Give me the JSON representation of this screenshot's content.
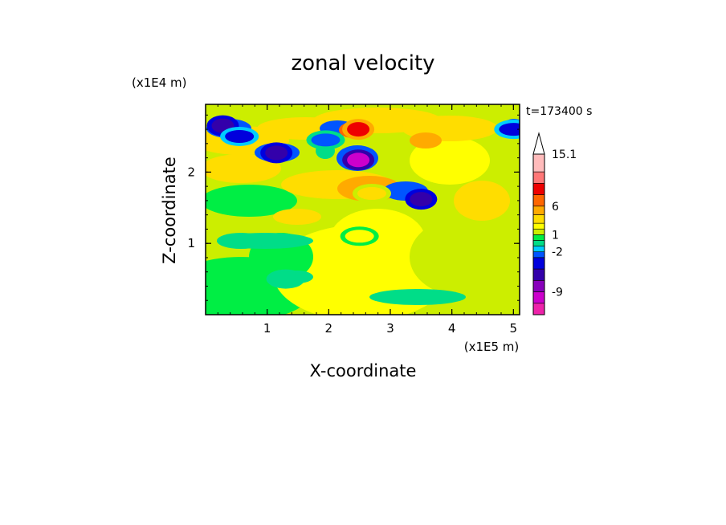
{
  "chart_data": {
    "type": "heatmap",
    "title": "zonal velocity",
    "xlabel": "X-coordinate",
    "ylabel": "Z-coordinate",
    "x_unit": "(x1E5 m)",
    "y_unit": "(x1E4 m)",
    "time_label": "t=173400 s",
    "xlim": [
      0,
      5.1
    ],
    "ylim": [
      0,
      2.95
    ],
    "x_ticks": [
      "1",
      "2",
      "3",
      "4",
      "5"
    ],
    "y_ticks": [
      "1",
      "2"
    ],
    "colorbar": {
      "levels": [
        -13,
        -11,
        -9,
        -7,
        -5,
        -3,
        -2,
        -1,
        0,
        1,
        2,
        3,
        4.5,
        6,
        8,
        10,
        12,
        15.1
      ],
      "labels": [
        "15.1",
        "6",
        "1",
        "-2",
        "-9"
      ],
      "colors": [
        "#ee22aa",
        "#cc00cc",
        "#8800bb",
        "#3300aa",
        "#0000dd",
        "#0055ff",
        "#00ccff",
        "#00dd88",
        "#00ee44",
        "#ccee00",
        "#ffff00",
        "#ffdd00",
        "#ffaa00",
        "#ff6600",
        "#ee0000",
        "#ff7777",
        "#ffbbbb"
      ],
      "extend_max": true
    },
    "features": [
      {
        "x": 0.28,
        "z": 2.65,
        "value": -7
      },
      {
        "x": 0.55,
        "z": 2.5,
        "value": -5
      },
      {
        "x": 1.15,
        "z": 2.27,
        "value": -7
      },
      {
        "x": 1.95,
        "z": 2.45,
        "value": -3
      },
      {
        "x": 2.48,
        "z": 2.17,
        "value": -10
      },
      {
        "x": 2.48,
        "z": 2.6,
        "value": 8
      },
      {
        "x": 3.5,
        "z": 1.62,
        "value": -7
      },
      {
        "x": 5.0,
        "z": 2.6,
        "value": -5
      },
      {
        "x": 2.7,
        "z": 1.7,
        "value": 4
      },
      {
        "x": 2.5,
        "z": 1.1,
        "value": 2
      },
      {
        "x": 1.3,
        "z": 0.5,
        "value": -1
      }
    ]
  }
}
